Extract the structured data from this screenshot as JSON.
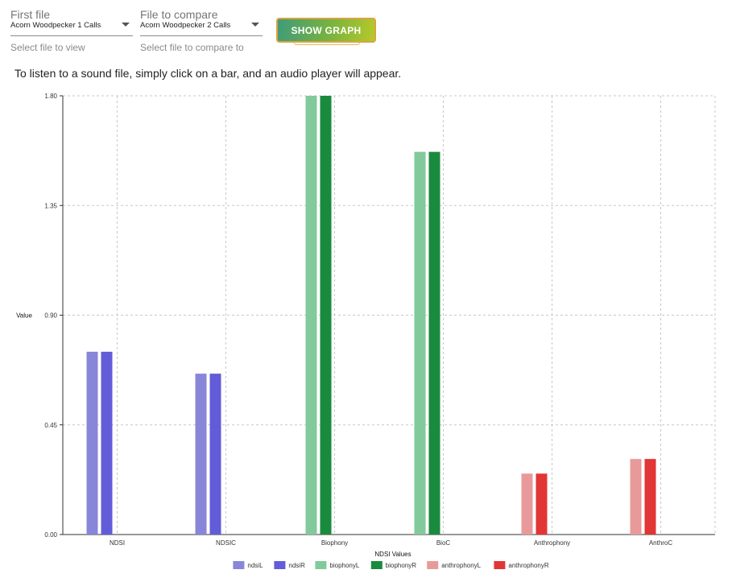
{
  "controls": {
    "first_file": {
      "label": "First file",
      "value": "Acorn Woodpecker 1 Calls",
      "hint": "Select file to view"
    },
    "compare_file": {
      "label": "File to compare",
      "value": "Acorn Woodpecker 2 Calls",
      "hint": "Select file to compare to"
    },
    "show_graph_label": "SHOW GRAPH"
  },
  "instruction": "To listen to a sound file, simply click on a bar, and an audio player will appear.",
  "chart_data": {
    "type": "bar",
    "xlabel": "NDSI Values",
    "ylabel": "Value",
    "ylim": [
      0,
      1.8
    ],
    "yticks": [
      "0.00",
      "0.45",
      "0.90",
      "1.35",
      "1.80"
    ],
    "grid": true,
    "legend_position": "bottom",
    "categories": [
      "NDSI",
      "NDSIC",
      "Biophony",
      "BioC",
      "Anthrophony",
      "AnthroC"
    ],
    "series": [
      {
        "name": "ndsiL",
        "color": "#8886d8",
        "values": [
          0.75,
          0.66,
          null,
          null,
          null,
          null
        ]
      },
      {
        "name": "ndsiR",
        "color": "#625cd8",
        "values": [
          0.75,
          0.66,
          null,
          null,
          null,
          null
        ]
      },
      {
        "name": "biophonyL",
        "color": "#82c99c",
        "values": [
          null,
          null,
          1.8,
          1.57,
          null,
          null
        ]
      },
      {
        "name": "biophonyR",
        "color": "#1a8a3e",
        "values": [
          null,
          null,
          1.8,
          1.57,
          null,
          null
        ]
      },
      {
        "name": "anthrophonyL",
        "color": "#e89a9a",
        "values": [
          null,
          null,
          null,
          null,
          0.25,
          0.31
        ]
      },
      {
        "name": "anthrophonyR",
        "color": "#e23535",
        "values": [
          null,
          null,
          null,
          null,
          0.25,
          0.31
        ]
      }
    ]
  }
}
